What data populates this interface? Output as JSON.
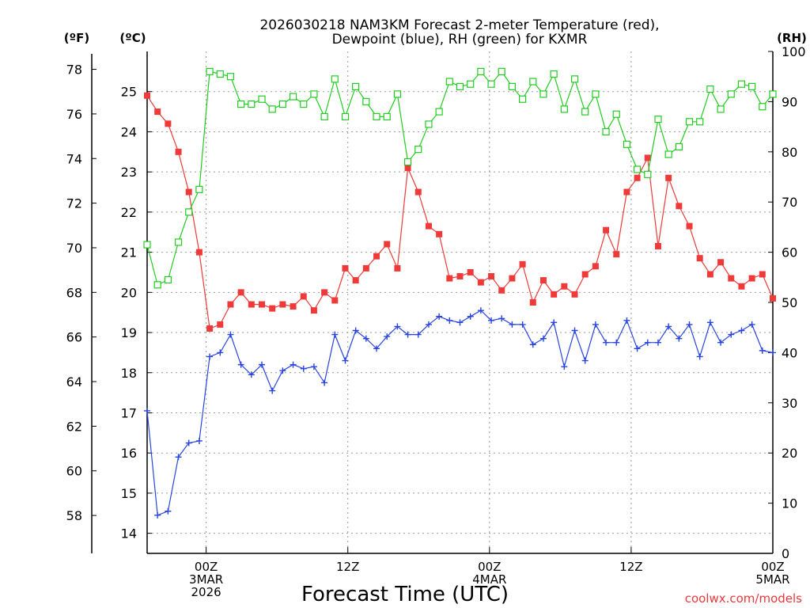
{
  "chart_data": {
    "type": "line",
    "title_line1": "2026030218 NAM3KM Forecast 2-meter Temperature (red),",
    "title_line2": "Dewpoint (blue), RH (green) for KXMR",
    "xlabel": "Forecast Time (UTC)",
    "credit": "coolwx.com/models",
    "left_unit_f": "(ºF)",
    "left_unit_c": "(ºC)",
    "right_unit": "(RH)",
    "colors": {
      "temperature": "#ef3a3a",
      "dewpoint": "#2a44e0",
      "rh": "#22cc22",
      "grid": "#999999"
    },
    "x_hours_start": 19,
    "x_hours_end": 72,
    "x_ticks": [
      {
        "hour": 24,
        "labels": [
          "00Z",
          "3MAR",
          "2026"
        ]
      },
      {
        "hour": 36,
        "labels": [
          "12Z"
        ]
      },
      {
        "hour": 48,
        "labels": [
          "00Z",
          "4MAR"
        ]
      },
      {
        "hour": 60,
        "labels": [
          "12Z"
        ]
      },
      {
        "hour": 72,
        "labels": [
          "00Z",
          "5MAR"
        ]
      }
    ],
    "yaxis_c": {
      "min": 13.5,
      "max": 26,
      "ticks": [
        "14",
        "15",
        "16",
        "17",
        "18",
        "19",
        "20",
        "21",
        "22",
        "23",
        "24",
        "25"
      ]
    },
    "yaxis_f": {
      "ticks": [
        "58",
        "60",
        "62",
        "64",
        "66",
        "68",
        "70",
        "72",
        "74",
        "76",
        "78"
      ]
    },
    "yaxis_rh": {
      "min": 0,
      "max": 100,
      "ticks": [
        "0",
        "10",
        "20",
        "30",
        "40",
        "50",
        "60",
        "70",
        "80",
        "90",
        "100"
      ]
    },
    "series": [
      {
        "name": "Temperature",
        "units": "C",
        "marker": "filled-square",
        "values": [
          24.9,
          24.5,
          24.2,
          23.5,
          22.5,
          21.0,
          19.1,
          19.2,
          19.7,
          20.0,
          19.7,
          19.7,
          19.6,
          19.7,
          19.65,
          19.9,
          19.55,
          20.0,
          19.8,
          20.6,
          20.3,
          20.6,
          20.9,
          21.2,
          20.6,
          23.1,
          22.5,
          21.65,
          21.45,
          20.35,
          20.4,
          20.5,
          20.25,
          20.4,
          20.05,
          20.35,
          20.7,
          19.75,
          20.3,
          19.95,
          20.15,
          19.95,
          20.45,
          20.65,
          21.55,
          20.95,
          22.5,
          22.85,
          23.35,
          21.15,
          22.85,
          22.15,
          21.65,
          20.85,
          20.45,
          20.75,
          20.35,
          20.15,
          20.35,
          20.45,
          19.85
        ]
      },
      {
        "name": "Dewpoint",
        "units": "C",
        "marker": "plus",
        "values": [
          17.05,
          14.45,
          14.55,
          15.9,
          16.25,
          16.3,
          18.4,
          18.5,
          18.95,
          18.2,
          17.95,
          18.2,
          17.55,
          18.05,
          18.2,
          18.1,
          18.15,
          17.75,
          18.95,
          18.3,
          19.05,
          18.85,
          18.6,
          18.9,
          19.15,
          18.95,
          18.95,
          19.2,
          19.4,
          19.3,
          19.25,
          19.4,
          19.55,
          19.3,
          19.35,
          19.2,
          19.2,
          18.7,
          18.85,
          19.25,
          18.15,
          19.05,
          18.3,
          19.2,
          18.75,
          18.75,
          19.3,
          18.6,
          18.75,
          18.75,
          19.15,
          18.85,
          19.2,
          18.4,
          19.25,
          18.75,
          18.95,
          19.05,
          19.2,
          18.55,
          18.5
        ]
      },
      {
        "name": "RH",
        "units": "%",
        "marker": "open-square",
        "values": [
          61.5,
          53.5,
          54.5,
          62,
          68,
          72.5,
          96,
          95.5,
          95,
          89.5,
          89.5,
          90.5,
          88.5,
          89.5,
          91,
          89.5,
          91.5,
          87,
          94.5,
          87,
          93,
          90,
          87,
          87,
          91.5,
          78,
          80.5,
          85.5,
          88,
          94,
          93,
          93.5,
          96,
          93.5,
          96,
          93,
          90.5,
          94,
          91.5,
          95.5,
          88.5,
          94.5,
          88,
          91.5,
          84,
          87.5,
          81.5,
          76.5,
          75.5,
          86.5,
          79.5,
          81,
          86,
          86,
          92.5,
          88.5,
          91.5,
          93.5,
          93,
          89,
          91.5
        ]
      }
    ]
  }
}
